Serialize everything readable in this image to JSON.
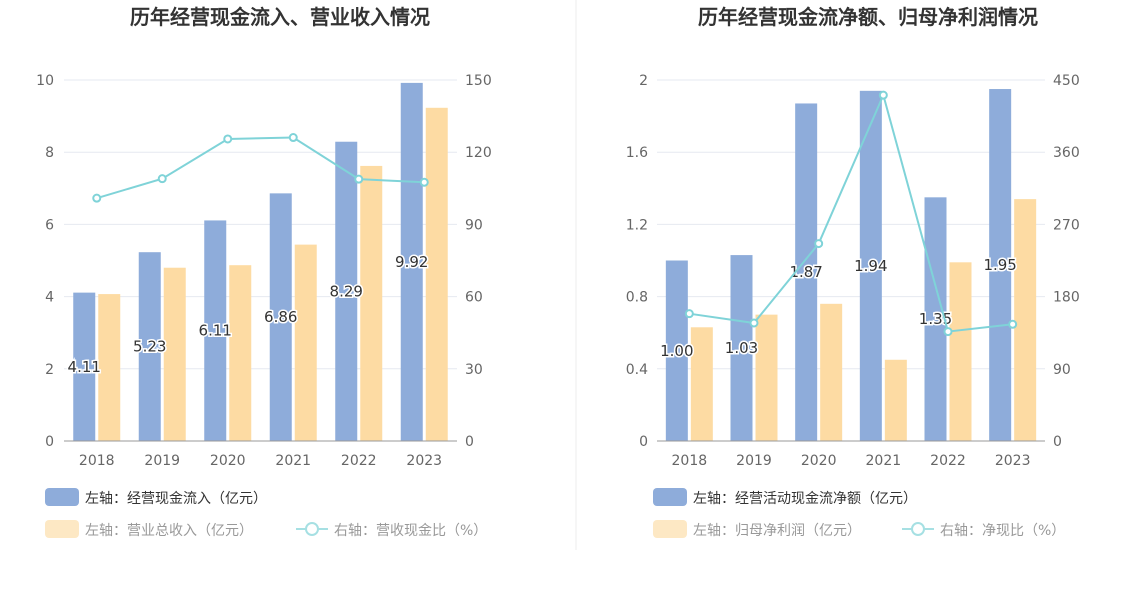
{
  "charts": [
    {
      "title": "历年经营现金流入、营业收入情况",
      "left_axis": {
        "min": 0,
        "max": 10,
        "ticks": [
          0,
          2,
          4,
          6,
          8,
          10
        ]
      },
      "right_axis": {
        "min": 0,
        "max": 150,
        "ticks": [
          0,
          30,
          60,
          90,
          120,
          150
        ]
      },
      "legend": [
        {
          "label": "左轴：经营现金流入（亿元）",
          "color": "#8eacda",
          "kind": "bar"
        },
        {
          "label": "左轴：营业总收入（亿元）",
          "color": "#fddba3",
          "kind": "bar"
        },
        {
          "label": "右轴：营收现金比（%）",
          "color": "#7fd3d8",
          "kind": "line"
        }
      ]
    },
    {
      "title": "历年经营现金流净额、归母净利润情况",
      "left_axis": {
        "min": 0,
        "max": 2,
        "ticks": [
          "0",
          "0.4",
          "0.8",
          "1.2",
          "1.6",
          "2"
        ]
      },
      "right_axis": {
        "min": 0,
        "max": 450,
        "ticks": [
          0,
          90,
          180,
          270,
          360,
          450
        ]
      },
      "legend": [
        {
          "label": "左轴：经营活动现金流净额（亿元）",
          "color": "#8eacda",
          "kind": "bar"
        },
        {
          "label": "左轴：归母净利润（亿元）",
          "color": "#fddba3",
          "kind": "bar"
        },
        {
          "label": "右轴：净现比（%）",
          "color": "#7fd3d8",
          "kind": "line"
        }
      ]
    }
  ],
  "chart_data": [
    {
      "type": "bar",
      "title": "历年经营现金流入、营业收入情况",
      "categories": [
        "2018",
        "2019",
        "2020",
        "2021",
        "2022",
        "2023"
      ],
      "series": [
        {
          "name": "经营现金流入（亿元）",
          "axis": "left",
          "type": "bar",
          "values": [
            4.11,
            5.23,
            6.11,
            6.86,
            8.29,
            9.92
          ],
          "labels": [
            "4.11",
            "5.23",
            "6.11",
            "6.86",
            "8.29",
            "9.92"
          ]
        },
        {
          "name": "营业总收入（亿元）",
          "axis": "left",
          "type": "bar",
          "values": [
            4.07,
            4.8,
            4.87,
            5.44,
            7.62,
            9.23
          ]
        },
        {
          "name": "营收现金比（%）",
          "axis": "right",
          "type": "line",
          "values": [
            100.9,
            109.0,
            125.5,
            126.1,
            108.8,
            107.5
          ]
        }
      ],
      "ylim_left": [
        0,
        10
      ],
      "ylim_right": [
        0,
        150
      ]
    },
    {
      "type": "bar",
      "title": "历年经营现金流净额、归母净利润情况",
      "categories": [
        "2018",
        "2019",
        "2020",
        "2021",
        "2022",
        "2023"
      ],
      "series": [
        {
          "name": "经营活动现金流净额（亿元）",
          "axis": "left",
          "type": "bar",
          "values": [
            1.0,
            1.03,
            1.87,
            1.94,
            1.35,
            1.95
          ],
          "labels": [
            "1.00",
            "1.03",
            "1.87",
            "1.94",
            "1.35",
            "1.95"
          ]
        },
        {
          "name": "归母净利润（亿元）",
          "axis": "left",
          "type": "bar",
          "values": [
            0.63,
            0.7,
            0.76,
            0.45,
            0.99,
            1.34
          ]
        },
        {
          "name": "净现比（%）",
          "axis": "right",
          "type": "line",
          "values": [
            158.7,
            147.1,
            246.1,
            431.1,
            136.4,
            145.5
          ]
        }
      ],
      "ylim_left": [
        0,
        2
      ],
      "ylim_right": [
        0,
        450
      ]
    }
  ]
}
